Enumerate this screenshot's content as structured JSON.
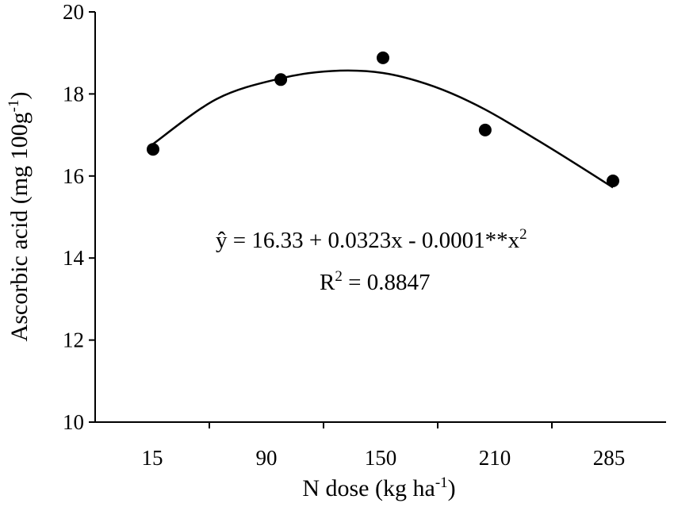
{
  "chart_data": {
    "type": "scatter",
    "title": "",
    "xlabel_main": "N dose (kg ha",
    "xlabel_sup": "-1",
    "xlabel_tail": ")",
    "ylabel_main": "Ascorbic acid (mg 100g",
    "ylabel_sup": "-1",
    "ylabel_tail": ")",
    "x_categories": [
      "15",
      "90",
      "150",
      "210",
      "285"
    ],
    "x_values": [
      15,
      90,
      150,
      210,
      285
    ],
    "y_values": [
      16.65,
      18.35,
      18.88,
      17.12,
      15.88
    ],
    "ylim": [
      10,
      20
    ],
    "yticks": [
      "10",
      "12",
      "14",
      "16",
      "18",
      "20"
    ],
    "trendline": {
      "type": "polynomial",
      "order": 2,
      "fit_curve": [
        {
          "x": 15,
          "y": 16.78
        },
        {
          "x": 52.5,
          "y": 17.88
        },
        {
          "x": 90,
          "y": 18.38
        },
        {
          "x": 120,
          "y": 18.56
        },
        {
          "x": 150,
          "y": 18.51
        },
        {
          "x": 180,
          "y": 18.18
        },
        {
          "x": 210,
          "y": 17.62
        },
        {
          "x": 247.5,
          "y": 16.7
        },
        {
          "x": 285,
          "y": 15.72
        }
      ]
    },
    "equation_main": "ŷ = 16.33 + 0.0323x - 0.0001**x",
    "equation_sup": "2",
    "r2_prefix": "R",
    "r2_sup": "2",
    "r2_value": " = 0.8847",
    "grid": false,
    "legend": "none",
    "colors": {
      "points": "#000000",
      "line": "#000000",
      "axis": "#000000"
    }
  }
}
